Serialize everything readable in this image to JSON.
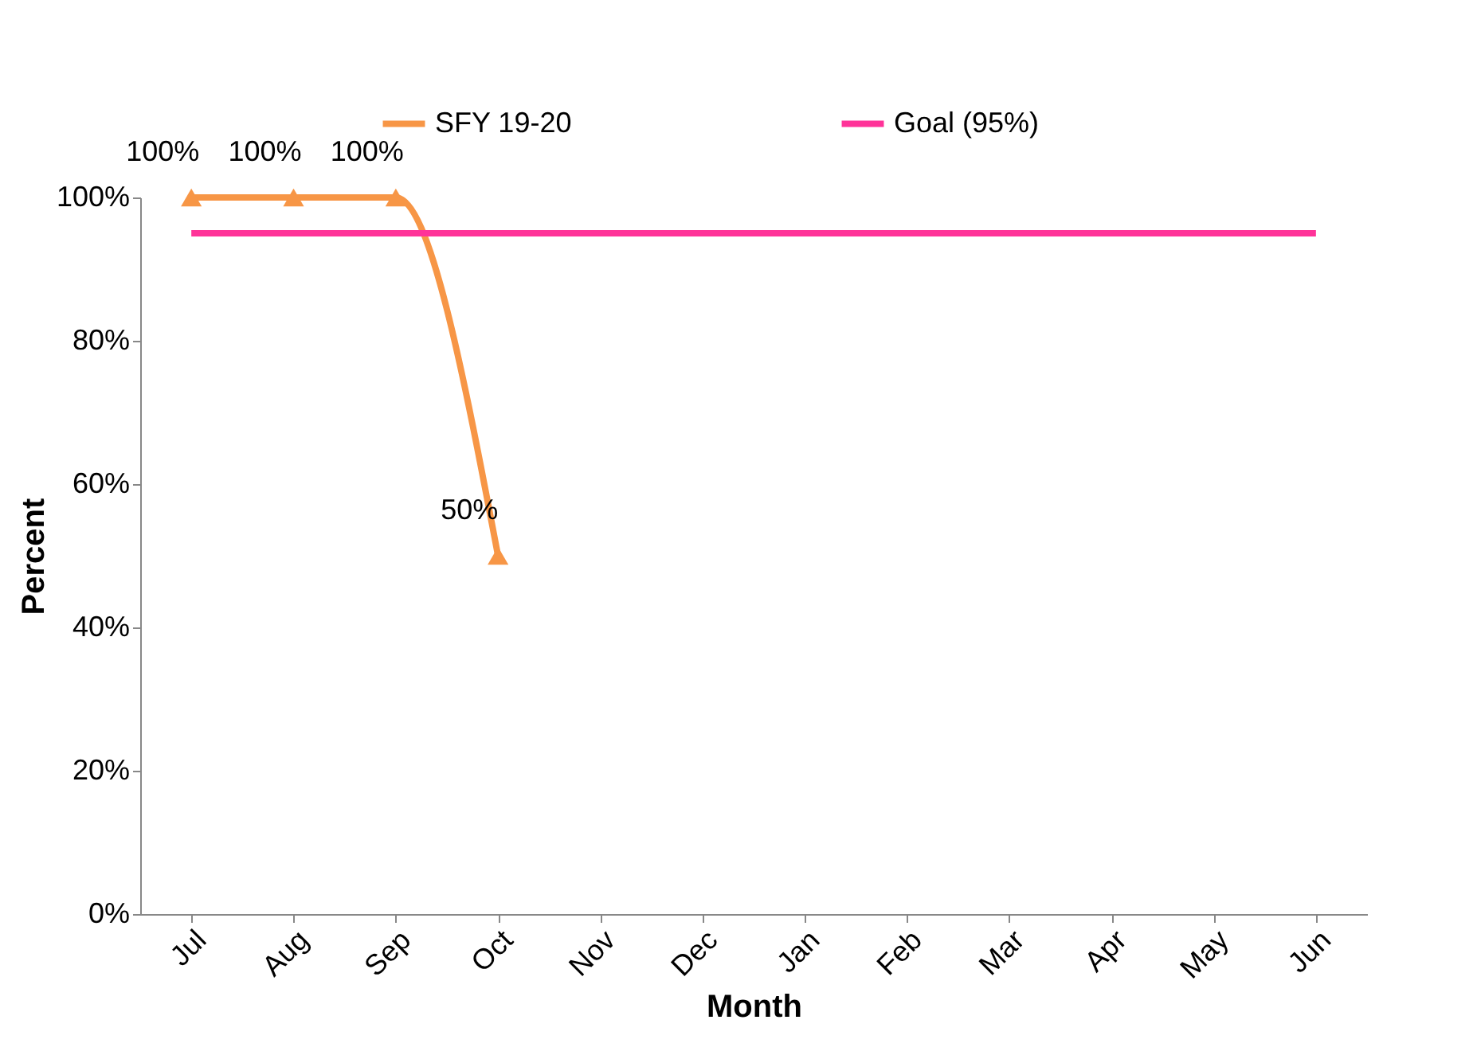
{
  "chart_data": {
    "type": "line",
    "xlabel": "Month",
    "ylabel": "Percent",
    "categories": [
      "Jul",
      "Aug",
      "Sep",
      "Oct",
      "Nov",
      "Dec",
      "Jan",
      "Feb",
      "Mar",
      "Apr",
      "May",
      "Jun"
    ],
    "series": [
      {
        "name": "SFY 19-20",
        "color": "#f79646",
        "marker": "triangle",
        "values": [
          100,
          100,
          100,
          50,
          null,
          null,
          null,
          null,
          null,
          null,
          null,
          null
        ],
        "value_labels": [
          "100%",
          "100%",
          "100%",
          "50%",
          null,
          null,
          null,
          null,
          null,
          null,
          null,
          null
        ]
      },
      {
        "name": "Goal (95%)",
        "color": "#ff3399",
        "marker": "none",
        "values": [
          95,
          95,
          95,
          95,
          95,
          95,
          95,
          95,
          95,
          95,
          95,
          95
        ]
      }
    ],
    "ylim": [
      0,
      100
    ],
    "yticks": [
      {
        "value": 0,
        "label": "0%"
      },
      {
        "value": 20,
        "label": "20%"
      },
      {
        "value": 40,
        "label": "40%"
      },
      {
        "value": 60,
        "label": "60%"
      },
      {
        "value": 80,
        "label": "80%"
      },
      {
        "value": 100,
        "label": "100%"
      }
    ],
    "legend": "top",
    "grid": false,
    "line_style": "solid"
  }
}
